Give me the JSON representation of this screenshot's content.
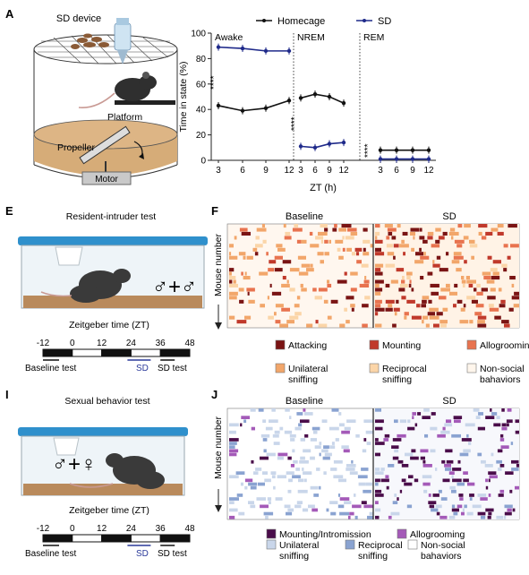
{
  "panels": {
    "a": {
      "letter": "A",
      "device_title": "SD device",
      "device_labels": {
        "platform": "Platform",
        "propeller": "Propeller",
        "motor": "Motor"
      },
      "legend": {
        "homecage": "Homecage",
        "sd": "SD"
      }
    },
    "e": {
      "letter": "E",
      "title": "Resident-intruder test",
      "symbol": "♂+♂",
      "timeline_title": "Zeitgeber time (ZT)",
      "ticks": [
        "-12",
        "0",
        "12",
        "24",
        "36",
        "48"
      ],
      "baseline_label": "Baseline test",
      "sd_label": "SD",
      "sdtest_label": "SD test"
    },
    "f": {
      "letter": "F",
      "baseline": "Baseline",
      "sd": "SD",
      "ylabel": "Mouse number",
      "legend": [
        {
          "label": "Attacking",
          "color": "#7a1414"
        },
        {
          "label": "Mounting",
          "color": "#c0392b"
        },
        {
          "label": "Allogrooming",
          "color": "#e8734f"
        },
        {
          "label": "Unilateral sniffing",
          "color": "#f2a66a"
        },
        {
          "label": "Reciprocal sniffing",
          "color": "#fbd5a8"
        },
        {
          "label": "Non-social bahaviors",
          "color": "#fff6ec"
        }
      ]
    },
    "i": {
      "letter": "I",
      "title": "Sexual behavior test",
      "symbol": "♂+♀",
      "timeline_title": "Zeitgeber time (ZT)",
      "ticks": [
        "-12",
        "0",
        "12",
        "24",
        "36",
        "48"
      ],
      "baseline_label": "Baseline test",
      "sd_label": "SD",
      "sdtest_label": "SD test"
    },
    "j": {
      "letter": "J",
      "baseline": "Baseline",
      "sd": "SD",
      "ylabel": "Mouse number",
      "legend": [
        {
          "label": "Mounting/Intromission",
          "color": "#4a0d4a"
        },
        {
          "label": "Allogrooming",
          "color": "#a45ab8"
        },
        {
          "label": "Unilateral sniffing",
          "color": "#c9d6ea"
        },
        {
          "label": "Reciprocal sniffing",
          "color": "#8aa3d1"
        },
        {
          "label": "Non-social bahaviors",
          "color": "#ffffff"
        }
      ]
    }
  },
  "chart_data": {
    "type": "line",
    "ylabel": "Time in state (%)",
    "xlabel": "ZT (h)",
    "ylim": [
      0,
      100
    ],
    "yticks": [
      0,
      20,
      40,
      60,
      80,
      100
    ],
    "xticks": [
      3,
      6,
      9,
      12
    ],
    "colors": {
      "homecage": "#111111",
      "sd": "#1f2a8a"
    },
    "panels": [
      {
        "name": "Awake",
        "significance": "****",
        "series": [
          {
            "name": "Homecage",
            "values": [
              43,
              39,
              41,
              47
            ]
          },
          {
            "name": "SD",
            "values": [
              89,
              88,
              86,
              86
            ]
          }
        ]
      },
      {
        "name": "NREM",
        "significance": "****",
        "series": [
          {
            "name": "Homecage",
            "values": [
              49,
              52,
              50,
              45
            ]
          },
          {
            "name": "SD",
            "values": [
              11,
              10,
              13,
              14
            ]
          }
        ]
      },
      {
        "name": "REM",
        "significance": "****",
        "series": [
          {
            "name": "Homecage",
            "values": [
              8,
              8,
              8,
              8
            ]
          },
          {
            "name": "SD",
            "values": [
              1,
              1,
              1,
              1
            ]
          }
        ]
      }
    ]
  }
}
